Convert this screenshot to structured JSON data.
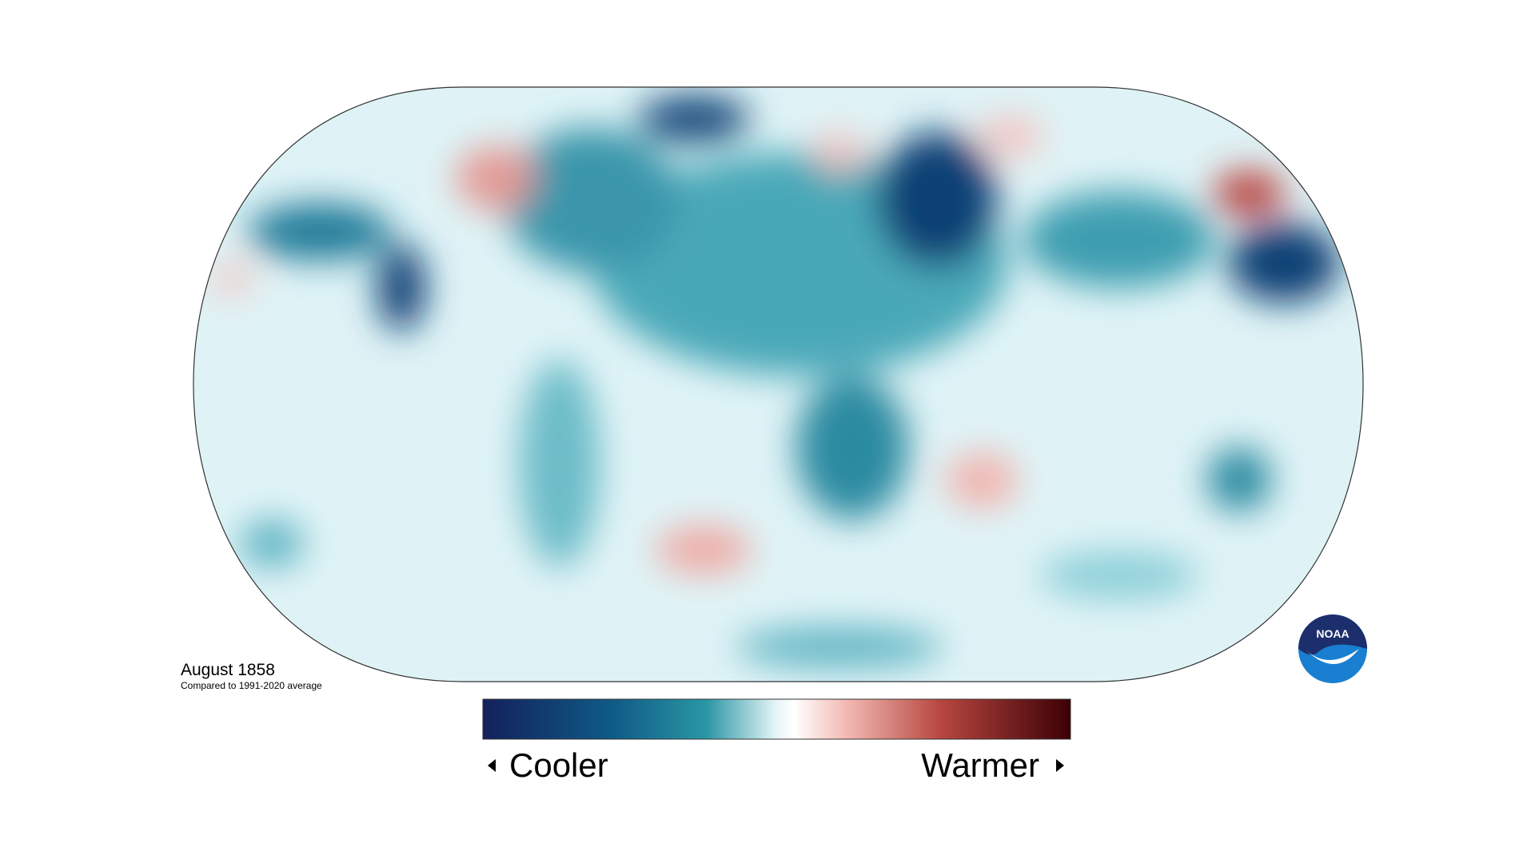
{
  "title": "August 1858",
  "subtitle": "Compared to 1991-2020 average",
  "legend": {
    "low": "Cooler",
    "high": "Warmer"
  },
  "logo": "NOAA"
}
